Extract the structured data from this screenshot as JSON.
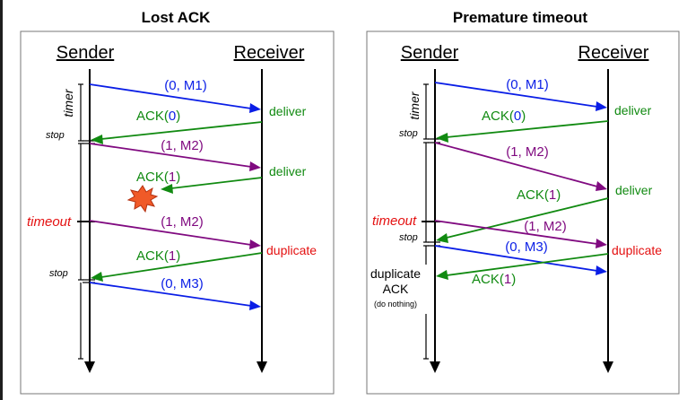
{
  "colors": {
    "blue": "#0a1ee6",
    "green": "#118a11",
    "purple": "#800a80",
    "red": "#e41010",
    "burst": "#f05a28"
  },
  "panels": [
    {
      "title": "Lost ACK",
      "sender_label": "Sender",
      "receiver_label": "Receiver",
      "timer_label": "timer",
      "stop_label": "stop",
      "timeout_label": "timeout",
      "messages": [
        {
          "pre": "(0, M1)",
          "seq": "",
          "post": "",
          "color": "blue"
        },
        {
          "pre": "ACK(",
          "seq": "0",
          "post": ")",
          "color": "green",
          "seq_color": "blue"
        },
        {
          "pre": "(1, M2)",
          "seq": "",
          "post": "",
          "color": "purple"
        },
        {
          "pre": "ACK(",
          "seq": "1",
          "post": ")",
          "color": "green",
          "seq_color": "purple"
        },
        {
          "pre": "(1, M2)",
          "seq": "",
          "post": "",
          "color": "purple"
        },
        {
          "pre": "ACK(",
          "seq": "1",
          "post": ")",
          "color": "green",
          "seq_color": "purple"
        },
        {
          "pre": "(0, M3)",
          "seq": "",
          "post": "",
          "color": "blue"
        }
      ],
      "events": [
        "deliver",
        "deliver",
        "duplicate"
      ],
      "note": []
    },
    {
      "title": "Premature timeout",
      "sender_label": "Sender",
      "receiver_label": "Receiver",
      "timer_label": "timer",
      "stop_label": "stop",
      "timeout_label": "timeout",
      "messages": [
        {
          "pre": "(0, M1)",
          "seq": "",
          "post": "",
          "color": "blue"
        },
        {
          "pre": "ACK(",
          "seq": "0",
          "post": ")",
          "color": "green",
          "seq_color": "blue"
        },
        {
          "pre": "(1, M2)",
          "seq": "",
          "post": "",
          "color": "purple"
        },
        {
          "pre": "ACK(",
          "seq": "1",
          "post": ")",
          "color": "green",
          "seq_color": "purple"
        },
        {
          "pre": "(1, M2)",
          "seq": "",
          "post": "",
          "color": "purple"
        },
        {
          "pre": "(0, M3)",
          "seq": "",
          "post": "",
          "color": "blue"
        },
        {
          "pre": "ACK(",
          "seq": "1",
          "post": ")",
          "color": "green",
          "seq_color": "purple"
        }
      ],
      "events": [
        "deliver",
        "deliver",
        "duplicate"
      ],
      "note": [
        "duplicate",
        "ACK",
        "(do nothing)"
      ]
    }
  ]
}
